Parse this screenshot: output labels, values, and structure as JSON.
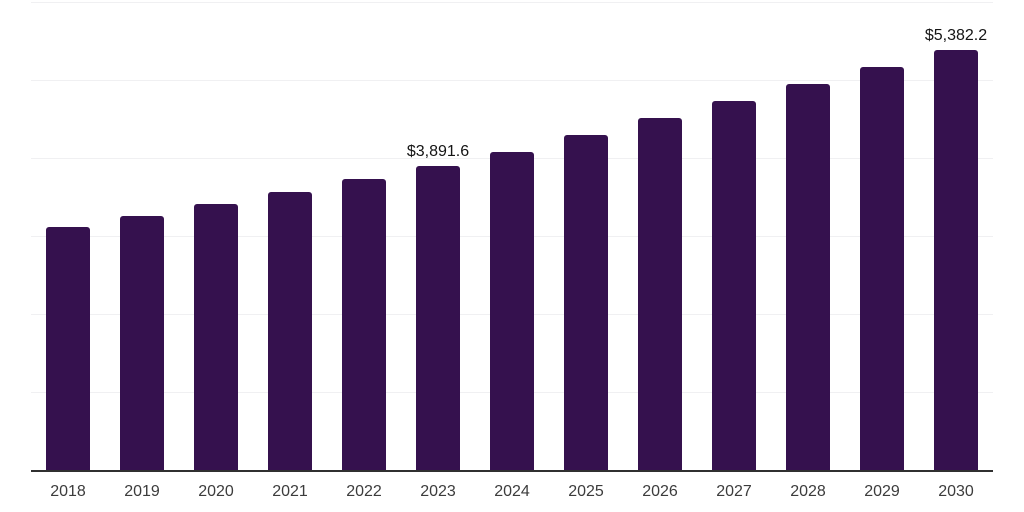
{
  "chart_data": {
    "type": "bar",
    "title": "",
    "xlabel": "",
    "ylabel": "",
    "categories": [
      "2018",
      "2019",
      "2020",
      "2021",
      "2022",
      "2023",
      "2024",
      "2025",
      "2026",
      "2027",
      "2028",
      "2029",
      "2030"
    ],
    "values": [
      3110,
      3255,
      3410,
      3570,
      3730,
      3891.6,
      4075,
      4295,
      4510,
      4730,
      4950,
      5170,
      5382.2
    ],
    "data_labels": [
      "",
      "",
      "",
      "",
      "",
      "$3,891.6",
      "",
      "",
      "",
      "",
      "",
      "",
      "$5,382.2"
    ],
    "ylim": [
      0,
      6000
    ],
    "gridline_step": 1000,
    "grid": "horizontal",
    "legend": "none",
    "y_axis_labels_visible": false,
    "bar_color": "#35114E"
  },
  "colors": {
    "bar": "#35114E",
    "gridline": "#f0f0f2",
    "axis_line": "#303030",
    "data_label": "#141414",
    "tick_label": "#3c3c3c",
    "background": "#ffffff"
  }
}
